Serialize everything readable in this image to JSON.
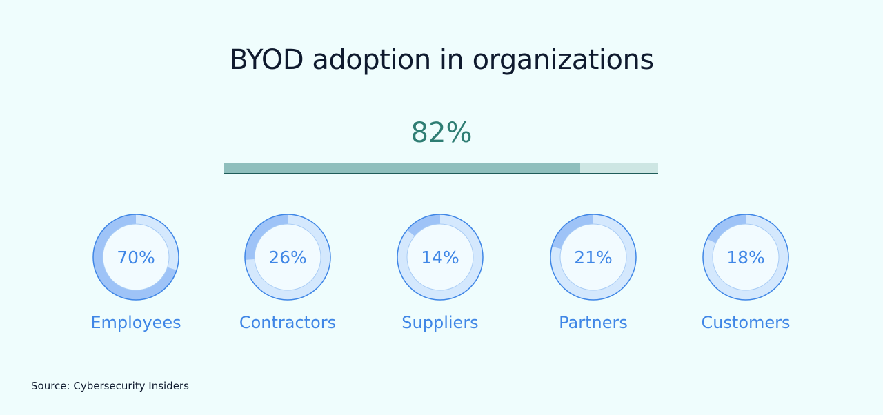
{
  "title": "BYOD adoption in organizations",
  "overall": {
    "value": 82,
    "label": "82%"
  },
  "source": "Source: Cybersecurity Insiders",
  "colors": {
    "background": "#effdfd",
    "bar_fill": "#8fbfbd",
    "bar_track": "#cde6e3",
    "donut_fill": "#9ec3f7",
    "donut_track": "#d4e8fd",
    "donut_text": "#3f86e6",
    "overall_text": "#2e7d73"
  },
  "chart_data": [
    {
      "type": "bar",
      "categories": [
        ""
      ],
      "values": [
        82
      ],
      "ylim": [
        0,
        100
      ],
      "data_labels": [
        "82%"
      ]
    },
    {
      "type": "pie",
      "categories": [
        "Employees",
        "Contractors",
        "Suppliers",
        "Partners",
        "Customers"
      ],
      "values": [
        70,
        26,
        14,
        21,
        18
      ],
      "data_labels": [
        "70%",
        "26%",
        "14%",
        "21%",
        "18%"
      ]
    }
  ]
}
